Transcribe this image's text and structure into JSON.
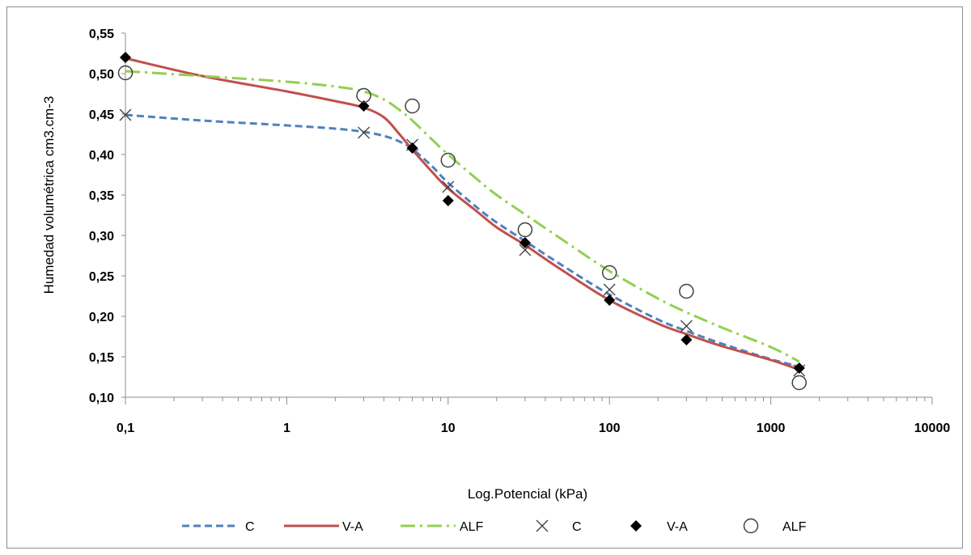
{
  "chart_data": {
    "type": "line",
    "xscale": "log",
    "xlabel": "Log.Potencial (kPa)",
    "ylabel": "Humedad volumétrica cm3.cm-3",
    "xlim": [
      0.1,
      10000
    ],
    "ylim": [
      0.1,
      0.55
    ],
    "x_ticks": [
      0.1,
      1,
      10,
      100,
      1000,
      10000
    ],
    "x_tick_labels": [
      "0,1",
      "1",
      "10",
      "100",
      "1000",
      "10000"
    ],
    "y_ticks": [
      0.1,
      0.15,
      0.2,
      0.25,
      0.3,
      0.35,
      0.4,
      0.45,
      0.5,
      0.55
    ],
    "y_tick_labels": [
      "0,10",
      "0,15",
      "0,20",
      "0,25",
      "0,30",
      "0,35",
      "0,40",
      "0,45",
      "0,50",
      "0,55"
    ],
    "grid": false,
    "legend_position": "bottom",
    "series": [
      {
        "name": "C",
        "kind": "fitted-line",
        "style": "dashed",
        "color": "#4f81bd",
        "x": [
          0.1,
          0.3,
          1,
          2,
          3,
          4,
          5,
          6,
          8,
          10,
          15,
          20,
          30,
          50,
          100,
          200,
          300,
          500,
          1000,
          1500
        ],
        "y": [
          0.449,
          0.442,
          0.436,
          0.432,
          0.428,
          0.423,
          0.416,
          0.407,
          0.385,
          0.365,
          0.335,
          0.316,
          0.293,
          0.264,
          0.227,
          0.196,
          0.182,
          0.166,
          0.147,
          0.138
        ]
      },
      {
        "name": "V-A",
        "kind": "fitted-line",
        "style": "solid",
        "color": "#c0504d",
        "x": [
          0.1,
          0.3,
          1,
          2,
          3,
          4,
          5,
          6,
          8,
          10,
          15,
          20,
          30,
          50,
          100,
          200,
          300,
          500,
          1000,
          1500
        ],
        "y": [
          0.519,
          0.497,
          0.478,
          0.466,
          0.458,
          0.446,
          0.425,
          0.406,
          0.378,
          0.358,
          0.33,
          0.31,
          0.288,
          0.258,
          0.22,
          0.191,
          0.178,
          0.163,
          0.146,
          0.134
        ]
      },
      {
        "name": "ALF",
        "kind": "fitted-line",
        "style": "dash-dot",
        "color": "#92d050",
        "x": [
          0.1,
          0.3,
          1,
          2,
          3,
          4,
          5,
          6,
          8,
          10,
          15,
          20,
          30,
          50,
          100,
          200,
          300,
          500,
          1000,
          1500
        ],
        "y": [
          0.503,
          0.497,
          0.49,
          0.484,
          0.478,
          0.468,
          0.455,
          0.442,
          0.418,
          0.4,
          0.37,
          0.35,
          0.326,
          0.296,
          0.256,
          0.222,
          0.205,
          0.186,
          0.162,
          0.144
        ]
      },
      {
        "name": "C",
        "kind": "points",
        "marker": "x",
        "color": "#404040",
        "x": [
          0.1,
          3,
          6,
          10,
          30,
          100,
          300,
          1500
        ],
        "y": [
          0.449,
          0.427,
          0.412,
          0.36,
          0.282,
          0.233,
          0.188,
          0.133
        ]
      },
      {
        "name": "V-A",
        "kind": "points",
        "marker": "diamond",
        "color": "#000000",
        "x": [
          0.1,
          3,
          6,
          10,
          30,
          100,
          300,
          1500
        ],
        "y": [
          0.52,
          0.46,
          0.408,
          0.343,
          0.291,
          0.22,
          0.171,
          0.136
        ]
      },
      {
        "name": "ALF",
        "kind": "points",
        "marker": "circle",
        "color": "#404040",
        "x": [
          0.1,
          3,
          6,
          10,
          30,
          100,
          300,
          1500
        ],
        "y": [
          0.501,
          0.473,
          0.46,
          0.393,
          0.307,
          0.254,
          0.231,
          0.118
        ]
      }
    ]
  }
}
